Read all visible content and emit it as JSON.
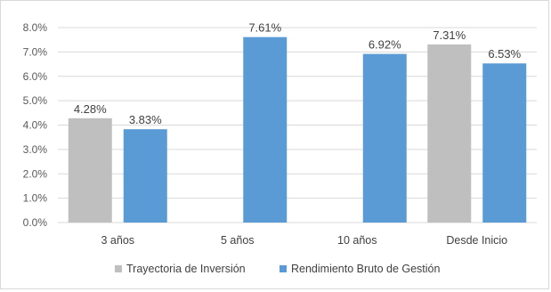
{
  "chart_data": {
    "type": "bar",
    "categories": [
      "3 años",
      "5 años",
      "10 años",
      "Desde Inicio"
    ],
    "series": [
      {
        "name": "Trayectoria de Inversión",
        "values": [
          4.28,
          null,
          null,
          7.31
        ],
        "labels": [
          "4.28%",
          "",
          "",
          "7.31%"
        ],
        "color": "#bfbfbf"
      },
      {
        "name": "Rendimiento Bruto de Gestión",
        "values": [
          3.83,
          7.61,
          6.92,
          6.53
        ],
        "labels": [
          "3.83%",
          "7.61%",
          "6.92%",
          "6.53%"
        ],
        "color": "#5b9bd5"
      }
    ],
    "yticks": [
      "0.0%",
      "1.0%",
      "2.0%",
      "3.0%",
      "4.0%",
      "5.0%",
      "6.0%",
      "7.0%",
      "8.0%"
    ],
    "ylim": [
      0,
      8
    ],
    "grid": true,
    "legend": "bottom"
  }
}
